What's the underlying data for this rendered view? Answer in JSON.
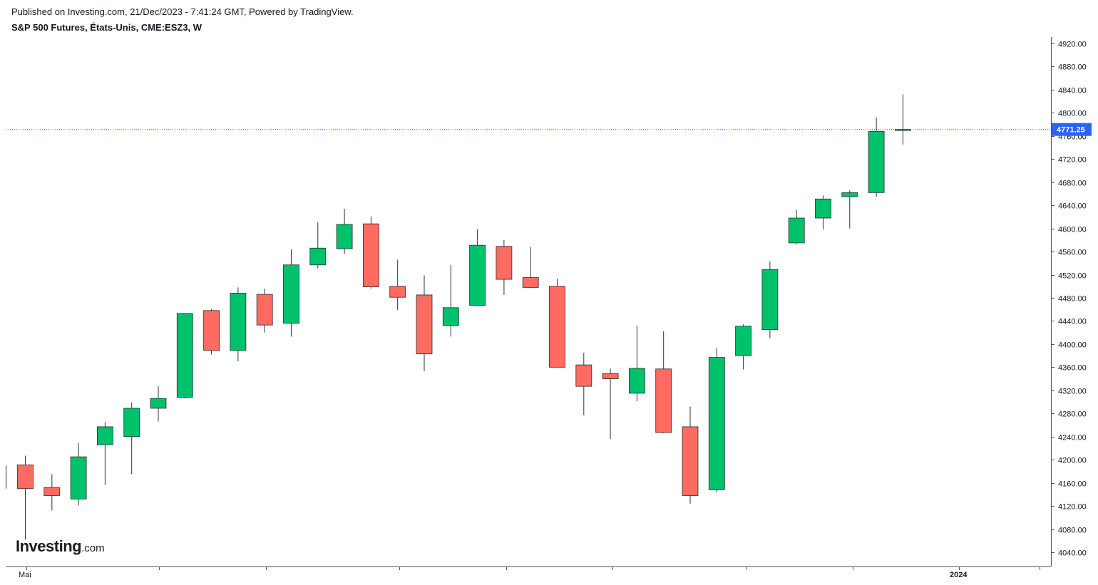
{
  "header": {
    "published": "Published on Investing.com, 21/Dec/2023 - 7:41:24 GMT, Powered by TradingView.",
    "symbol": "S&P 500 Futures, États-Unis, CME:ESZ3, W"
  },
  "logo": {
    "main": "Investing",
    "suffix": ".com"
  },
  "colors": {
    "up": "#00c26b",
    "down": "#ff6b61",
    "wick": "#1f3b2e",
    "last_price_line": "#2962ff",
    "axis": "#555555"
  },
  "chart_data": {
    "type": "candlestick",
    "interval": "W",
    "ylim": [
      4020,
      4930
    ],
    "y_ticks": [
      "4920.00",
      "4880.00",
      "4840.00",
      "4800.00",
      "4760.00",
      "4720.00",
      "4680.00",
      "4640.00",
      "4600.00",
      "4560.00",
      "4520.00",
      "4480.00",
      "4440.00",
      "4400.00",
      "4360.00",
      "4320.00",
      "4280.00",
      "4240.00",
      "4200.00",
      "4160.00",
      "4120.00",
      "4080.00",
      "4040.00"
    ],
    "x_labels": [
      "Mai",
      "2024"
    ],
    "last_price": "4771.25",
    "last_price_value": 4771.25,
    "candles": [
      {
        "o": 4150,
        "h": 4190,
        "l": 4150,
        "c": 4190
      },
      {
        "o": 4191,
        "h": 4207,
        "l": 4062,
        "c": 4150
      },
      {
        "o": 4152,
        "h": 4175,
        "l": 4112,
        "c": 4138
      },
      {
        "o": 4132,
        "h": 4229,
        "l": 4121,
        "c": 4205
      },
      {
        "o": 4226,
        "h": 4265,
        "l": 4156,
        "c": 4257
      },
      {
        "o": 4240,
        "h": 4299,
        "l": 4175,
        "c": 4289
      },
      {
        "o": 4289,
        "h": 4327,
        "l": 4266,
        "c": 4306
      },
      {
        "o": 4308,
        "h": 4453,
        "l": 4306,
        "c": 4453
      },
      {
        "o": 4458,
        "h": 4461,
        "l": 4382,
        "c": 4389
      },
      {
        "o": 4389,
        "h": 4498,
        "l": 4370,
        "c": 4488
      },
      {
        "o": 4486,
        "h": 4496,
        "l": 4420,
        "c": 4433
      },
      {
        "o": 4436,
        "h": 4564,
        "l": 4413,
        "c": 4537
      },
      {
        "o": 4537,
        "h": 4611,
        "l": 4531,
        "c": 4566
      },
      {
        "o": 4565,
        "h": 4634,
        "l": 4556,
        "c": 4607
      },
      {
        "o": 4608,
        "h": 4621,
        "l": 4496,
        "c": 4499
      },
      {
        "o": 4500,
        "h": 4546,
        "l": 4459,
        "c": 4481
      },
      {
        "o": 4485,
        "h": 4519,
        "l": 4353,
        "c": 4383
      },
      {
        "o": 4432,
        "h": 4537,
        "l": 4413,
        "c": 4463
      },
      {
        "o": 4467,
        "h": 4599,
        "l": 4467,
        "c": 4571
      },
      {
        "o": 4569,
        "h": 4580,
        "l": 4485,
        "c": 4512
      },
      {
        "o": 4515,
        "h": 4568,
        "l": 4497,
        "c": 4498
      },
      {
        "o": 4500,
        "h": 4513,
        "l": 4360,
        "c": 4360
      },
      {
        "o": 4364,
        "h": 4385,
        "l": 4277,
        "c": 4327
      },
      {
        "o": 4349,
        "h": 4358,
        "l": 4236,
        "c": 4340
      },
      {
        "o": 4315,
        "h": 4432,
        "l": 4301,
        "c": 4358
      },
      {
        "o": 4357,
        "h": 4422,
        "l": 4246,
        "c": 4247
      },
      {
        "o": 4257,
        "h": 4292,
        "l": 4124,
        "c": 4138
      },
      {
        "o": 4148,
        "h": 4393,
        "l": 4144,
        "c": 4377
      },
      {
        "o": 4380,
        "h": 4434,
        "l": 4356,
        "c": 4431
      },
      {
        "o": 4425,
        "h": 4543,
        "l": 4410,
        "c": 4529
      },
      {
        "o": 4575,
        "h": 4632,
        "l": 4573,
        "c": 4618
      },
      {
        "o": 4618,
        "h": 4657,
        "l": 4598,
        "c": 4651
      },
      {
        "o": 4655,
        "h": 4666,
        "l": 4600,
        "c": 4662
      },
      {
        "o": 4662,
        "h": 4792,
        "l": 4655,
        "c": 4768
      },
      {
        "o": 4770,
        "h": 4832,
        "l": 4745,
        "c": 4771.25
      }
    ]
  }
}
